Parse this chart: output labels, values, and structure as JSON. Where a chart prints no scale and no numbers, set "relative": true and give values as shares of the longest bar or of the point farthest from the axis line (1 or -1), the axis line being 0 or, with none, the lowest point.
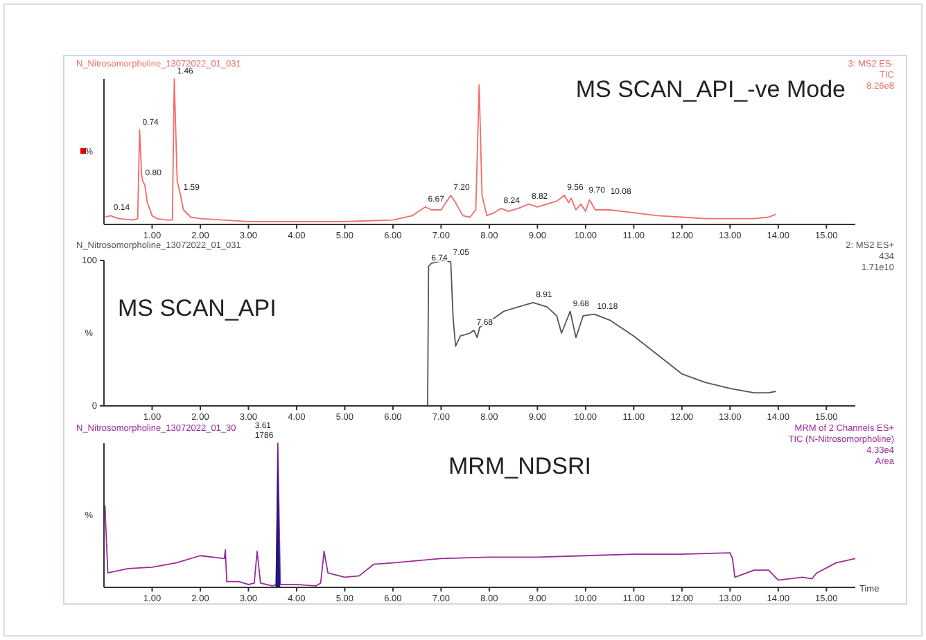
{
  "chart_data": [
    {
      "type": "line",
      "title": "MS SCAN_API_-ve Mode",
      "ylabel": "%",
      "relative": true,
      "xlim": [
        0,
        15.6
      ],
      "xticks": [
        {
          "value": 1,
          "label": "1.00"
        },
        {
          "value": 2,
          "label": "2.00"
        },
        {
          "value": 3,
          "label": "3.00"
        },
        {
          "value": 4,
          "label": "4.00"
        },
        {
          "value": 5,
          "label": "5.00"
        },
        {
          "value": 6,
          "label": "6.00"
        },
        {
          "value": 7,
          "label": "7.00"
        },
        {
          "value": 8,
          "label": "8.00"
        },
        {
          "value": 9,
          "label": "9.00"
        },
        {
          "value": 10,
          "label": "10.00"
        },
        {
          "value": 11,
          "label": "11.00"
        },
        {
          "value": 12,
          "label": "12.00"
        },
        {
          "value": 13,
          "label": "13.00"
        },
        {
          "value": 14,
          "label": "14.00"
        },
        {
          "value": 15,
          "label": "15.00"
        }
      ],
      "annotations": [
        "N_Nitrosomorpholine_13072022_01_031",
        "3: MS2 ES-",
        "TIC",
        "8.26e8",
        {
          "text": "0.14",
          "x": 0.14,
          "y": 0.06
        },
        {
          "text": "0.74",
          "x": 0.74,
          "y": 0.65
        },
        {
          "text": "0.80",
          "x": 0.8,
          "y": 0.3
        },
        {
          "text": "1.46",
          "x": 1.46,
          "y": 1.0
        },
        {
          "text": "1.59",
          "x": 1.59,
          "y": 0.2
        },
        {
          "text": "6.67",
          "x": 6.67,
          "y": 0.12
        },
        {
          "text": "7.20",
          "x": 7.2,
          "y": 0.2
        },
        {
          "text": "8.24",
          "x": 8.24,
          "y": 0.11
        },
        {
          "text": "8.82",
          "x": 8.82,
          "y": 0.14
        },
        {
          "text": "9.56",
          "x": 9.56,
          "y": 0.2
        },
        {
          "text": "9.70",
          "x": 9.7,
          "y": 0.18
        },
        {
          "text": "10.08",
          "x": 10.08,
          "y": 0.17
        }
      ],
      "series": [
        {
          "color": "#f26b6b",
          "x": [
            0.02,
            0.14,
            0.3,
            0.6,
            0.7,
            0.74,
            0.78,
            0.8,
            0.85,
            0.9,
            1.0,
            1.1,
            1.3,
            1.42,
            1.46,
            1.52,
            1.59,
            1.65,
            1.8,
            2.0,
            3.0,
            4.0,
            5.0,
            6.0,
            6.4,
            6.67,
            6.8,
            7.0,
            7.2,
            7.3,
            7.45,
            7.6,
            7.72,
            7.79,
            7.85,
            7.95,
            8.1,
            8.24,
            8.4,
            8.6,
            8.82,
            9.0,
            9.2,
            9.4,
            9.56,
            9.65,
            9.7,
            9.8,
            9.9,
            10.0,
            10.08,
            10.2,
            10.5,
            11.0,
            11.5,
            12.0,
            12.5,
            13.0,
            13.5,
            13.8,
            13.95
          ],
          "values": [
            0.05,
            0.06,
            0.04,
            0.03,
            0.04,
            0.65,
            0.35,
            0.3,
            0.27,
            0.15,
            0.06,
            0.04,
            0.03,
            0.03,
            1.0,
            0.3,
            0.2,
            0.1,
            0.05,
            0.04,
            0.02,
            0.02,
            0.02,
            0.03,
            0.06,
            0.12,
            0.1,
            0.1,
            0.2,
            0.15,
            0.06,
            0.05,
            0.1,
            0.96,
            0.2,
            0.06,
            0.08,
            0.11,
            0.09,
            0.11,
            0.14,
            0.12,
            0.14,
            0.16,
            0.2,
            0.15,
            0.18,
            0.1,
            0.14,
            0.09,
            0.17,
            0.1,
            0.1,
            0.08,
            0.06,
            0.05,
            0.04,
            0.04,
            0.04,
            0.05,
            0.07
          ]
        }
      ]
    },
    {
      "type": "line",
      "title": "MS SCAN_API",
      "ylabel": "%",
      "ylim": [
        0,
        100
      ],
      "yticks": [
        0,
        100
      ],
      "xlim": [
        0,
        15.6
      ],
      "xticks": [
        {
          "value": 1,
          "label": "1.00"
        },
        {
          "value": 2,
          "label": "2.00"
        },
        {
          "value": 3,
          "label": "3.00"
        },
        {
          "value": 4,
          "label": "4.00"
        },
        {
          "value": 5,
          "label": "5.00"
        },
        {
          "value": 6,
          "label": "6.00"
        },
        {
          "value": 7,
          "label": "7.00"
        },
        {
          "value": 8,
          "label": "8.00"
        },
        {
          "value": 9,
          "label": "9.00"
        },
        {
          "value": 10,
          "label": "10.00"
        },
        {
          "value": 11,
          "label": "11.00"
        },
        {
          "value": 12,
          "label": "12.00"
        },
        {
          "value": 13,
          "label": "13.00"
        },
        {
          "value": 14,
          "label": "14.00"
        },
        {
          "value": 15,
          "label": "15.00"
        }
      ],
      "annotations": [
        "N_Nitrosomorpholine_13072022_01_031",
        "2: MS2 ES+",
        "434",
        "1.71e10",
        {
          "text": "6.74",
          "x": 6.74,
          "y": 96
        },
        {
          "text": "7.05",
          "x": 7.05,
          "y": 100
        },
        {
          "text": "7.68",
          "x": 7.68,
          "y": 52
        },
        {
          "text": "8.91",
          "x": 8.91,
          "y": 71
        },
        {
          "text": "9.68",
          "x": 9.68,
          "y": 65
        },
        {
          "text": "10.18",
          "x": 10.18,
          "y": 63
        }
      ],
      "series": [
        {
          "color": "#555555",
          "x": [
            0.05,
            5.9,
            6.0,
            6.1,
            6.2,
            6.72,
            6.74,
            6.8,
            7.05,
            7.2,
            7.25,
            7.3,
            7.4,
            7.6,
            7.68,
            7.75,
            7.8,
            8.0,
            8.3,
            8.6,
            8.91,
            9.2,
            9.4,
            9.5,
            9.68,
            9.8,
            9.95,
            10.18,
            10.5,
            11.0,
            11.5,
            12.0,
            12.5,
            13.0,
            13.5,
            13.8,
            13.95
          ],
          "values": [
            0,
            0,
            0,
            0,
            0,
            0,
            96,
            98,
            100,
            99,
            60,
            41,
            48,
            50,
            52,
            47,
            54,
            58,
            65,
            68,
            71,
            68,
            62,
            50,
            65,
            47,
            62,
            63,
            59,
            48,
            35,
            22,
            16,
            12,
            9,
            9,
            10
          ]
        }
      ]
    },
    {
      "type": "line",
      "title": "MRM_NDSRI",
      "ylabel": "%",
      "xlabel": "Time",
      "relative": true,
      "xlim": [
        0,
        15.6
      ],
      "xticks": [
        {
          "value": 1,
          "label": "1.00"
        },
        {
          "value": 2,
          "label": "2.00"
        },
        {
          "value": 3,
          "label": "3.00"
        },
        {
          "value": 4,
          "label": "4.00"
        },
        {
          "value": 5,
          "label": "5.00"
        },
        {
          "value": 6,
          "label": "6.00"
        },
        {
          "value": 7,
          "label": "7.00"
        },
        {
          "value": 8,
          "label": "8.00"
        },
        {
          "value": 9,
          "label": "9.00"
        },
        {
          "value": 10,
          "label": "10.00"
        },
        {
          "value": 11,
          "label": "11.00"
        },
        {
          "value": 12,
          "label": "12.00"
        },
        {
          "value": 13,
          "label": "13.00"
        },
        {
          "value": 14,
          "label": "14.00"
        },
        {
          "value": 15,
          "label": "15.00"
        }
      ],
      "annotations": [
        "N_Nitrosomorpholine_13072022_01_30",
        "MRM of 2 Channels ES+",
        "TIC (N-Nitrosomorpholine)",
        "4.33e4",
        "Area",
        {
          "text": "3.61",
          "x": 3.61,
          "y": 1.0
        },
        {
          "text": "1786",
          "x": 3.61,
          "y": 1.0
        }
      ],
      "series": [
        {
          "color": "#9b2a9b",
          "x": [
            0.02,
            0.08,
            0.5,
            1.0,
            1.5,
            2.0,
            2.5,
            2.52,
            2.55,
            2.8,
            3.0,
            3.12,
            3.18,
            3.25,
            3.5,
            3.58,
            3.61,
            3.66,
            4.0,
            4.4,
            4.5,
            4.57,
            4.65,
            5.0,
            5.3,
            5.6,
            6.0,
            7.0,
            8.0,
            9.0,
            10.0,
            11.0,
            12.0,
            13.0,
            13.05,
            13.1,
            13.5,
            13.8,
            14.0,
            14.5,
            14.7,
            14.8,
            15.2,
            15.6
          ],
          "values": [
            0.57,
            0.1,
            0.13,
            0.14,
            0.17,
            0.22,
            0.2,
            0.26,
            0.04,
            0.04,
            0.02,
            0.03,
            0.25,
            0.03,
            0.01,
            0.02,
            1.0,
            0.02,
            0.02,
            0.01,
            0.03,
            0.25,
            0.1,
            0.07,
            0.08,
            0.16,
            0.17,
            0.2,
            0.21,
            0.21,
            0.22,
            0.23,
            0.23,
            0.24,
            0.2,
            0.07,
            0.12,
            0.12,
            0.05,
            0.07,
            0.06,
            0.1,
            0.17,
            0.2
          ]
        },
        {
          "type": "area",
          "color": "#1a1a80",
          "x": [
            3.56,
            3.59,
            3.61,
            3.63,
            3.66
          ],
          "values": [
            0,
            0.6,
            1.0,
            0.5,
            0
          ]
        }
      ]
    }
  ]
}
